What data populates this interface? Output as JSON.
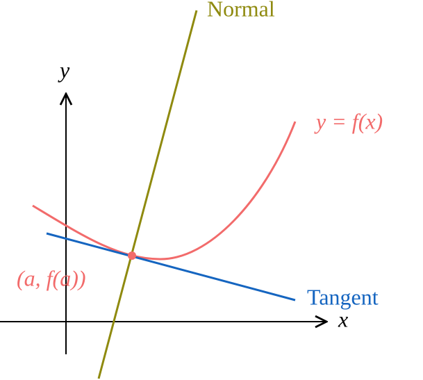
{
  "labels": {
    "normal": "Normal",
    "y_axis": "y",
    "curve": "y = f(x)",
    "point": "(a, f(a))",
    "tangent": "Tangent",
    "x_axis": "x"
  }
}
